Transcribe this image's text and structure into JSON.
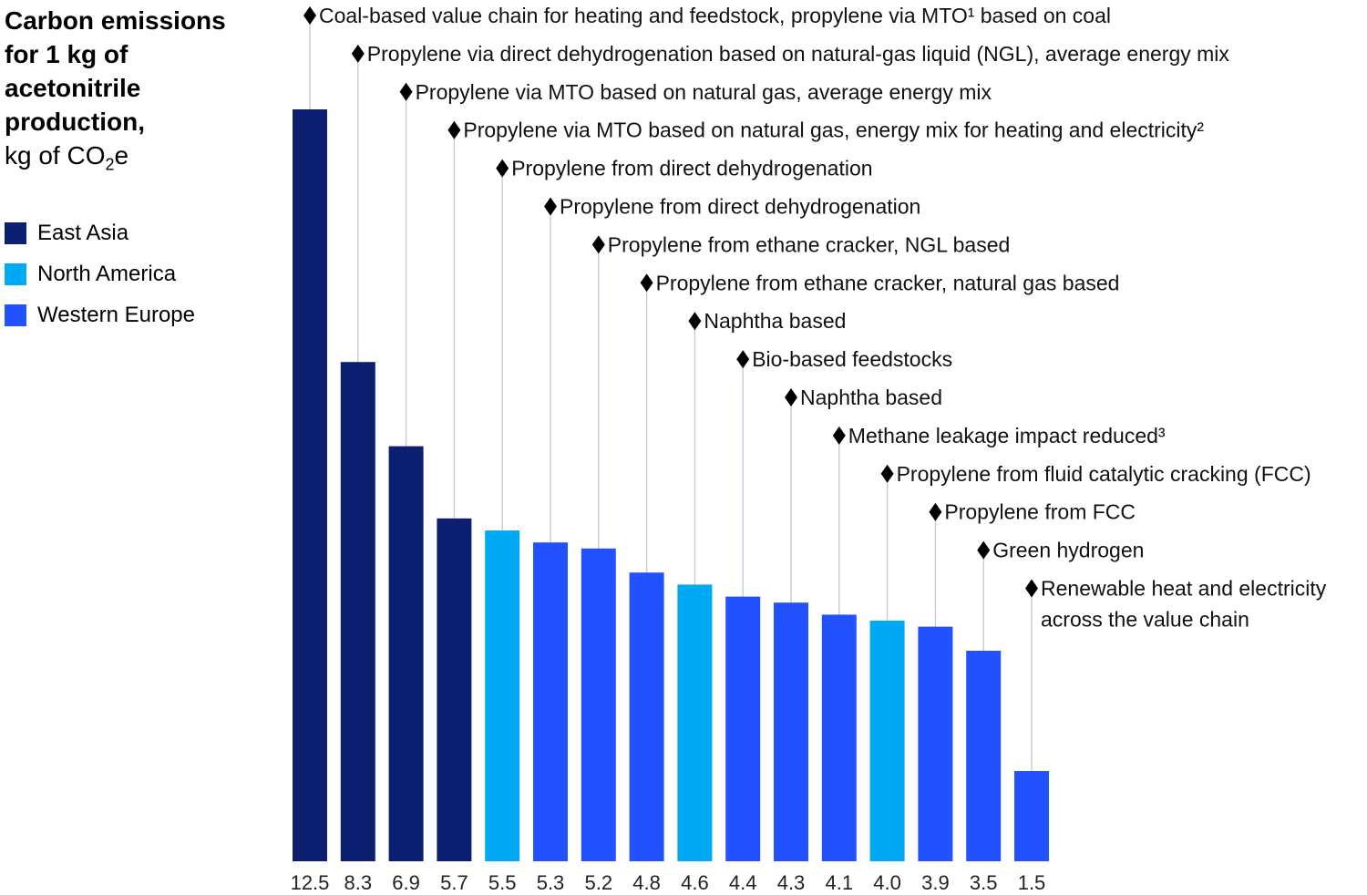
{
  "chart_data": {
    "type": "bar",
    "title": "Carbon emissions for 1 kg of acetonitrile production,",
    "subtitle": "kg of CO₂e",
    "legend": [
      {
        "name": "East Asia",
        "color": "#0c1f70"
      },
      {
        "name": "North America",
        "color": "#00a9f4"
      },
      {
        "name": "Western Europe",
        "color": "#2251ff"
      }
    ],
    "legend_placement": "left",
    "grid": false,
    "ylim": [
      0,
      12.5
    ],
    "categories": [
      "12.5",
      "8.3",
      "6.9",
      "5.7",
      "5.5",
      "5.3",
      "5.2",
      "4.8",
      "4.6",
      "4.4",
      "4.3",
      "4.1",
      "4.0",
      "3.9",
      "3.5",
      "1.5"
    ],
    "bars": [
      {
        "value": 12.5,
        "region": "East Asia",
        "label": [
          "Coal-based value chain for heating and feedstock, propylene via MTO¹ based on coal"
        ]
      },
      {
        "value": 8.3,
        "region": "East Asia",
        "label": [
          "Propylene via direct dehydrogenation based on natural-gas liquid (NGL), average energy mix"
        ]
      },
      {
        "value": 6.9,
        "region": "East Asia",
        "label": [
          "Propylene via MTO based on natural gas, average energy mix"
        ]
      },
      {
        "value": 5.7,
        "region": "East Asia",
        "label": [
          "Propylene via MTO based on natural gas, energy mix for heating and electricity²"
        ]
      },
      {
        "value": 5.5,
        "region": "North America",
        "label": [
          "Propylene from direct dehydrogenation"
        ]
      },
      {
        "value": 5.3,
        "region": "Western Europe",
        "label": [
          "Propylene from direct dehydrogenation"
        ]
      },
      {
        "value": 5.2,
        "region": "Western Europe",
        "label": [
          "Propylene from ethane cracker, NGL based"
        ]
      },
      {
        "value": 4.8,
        "region": "Western Europe",
        "label": [
          "Propylene from ethane cracker, natural gas based"
        ]
      },
      {
        "value": 4.6,
        "region": "North America",
        "label": [
          "Naphtha based"
        ]
      },
      {
        "value": 4.4,
        "region": "Western Europe",
        "label": [
          "Bio-based feedstocks"
        ]
      },
      {
        "value": 4.3,
        "region": "Western Europe",
        "label": [
          "Naphtha based"
        ]
      },
      {
        "value": 4.1,
        "region": "Western Europe",
        "label": [
          "Methane leakage impact reduced³"
        ]
      },
      {
        "value": 4.0,
        "region": "North America",
        "label": [
          "Propylene from fluid catalytic cracking (FCC)"
        ]
      },
      {
        "value": 3.9,
        "region": "Western Europe",
        "label": [
          "Propylene from FCC"
        ]
      },
      {
        "value": 3.5,
        "region": "Western Europe",
        "label": [
          "Green hydrogen"
        ]
      },
      {
        "value": 1.5,
        "region": "Western Europe",
        "label": [
          "Renewable heat and electricity",
          "across the value chain"
        ]
      }
    ]
  }
}
